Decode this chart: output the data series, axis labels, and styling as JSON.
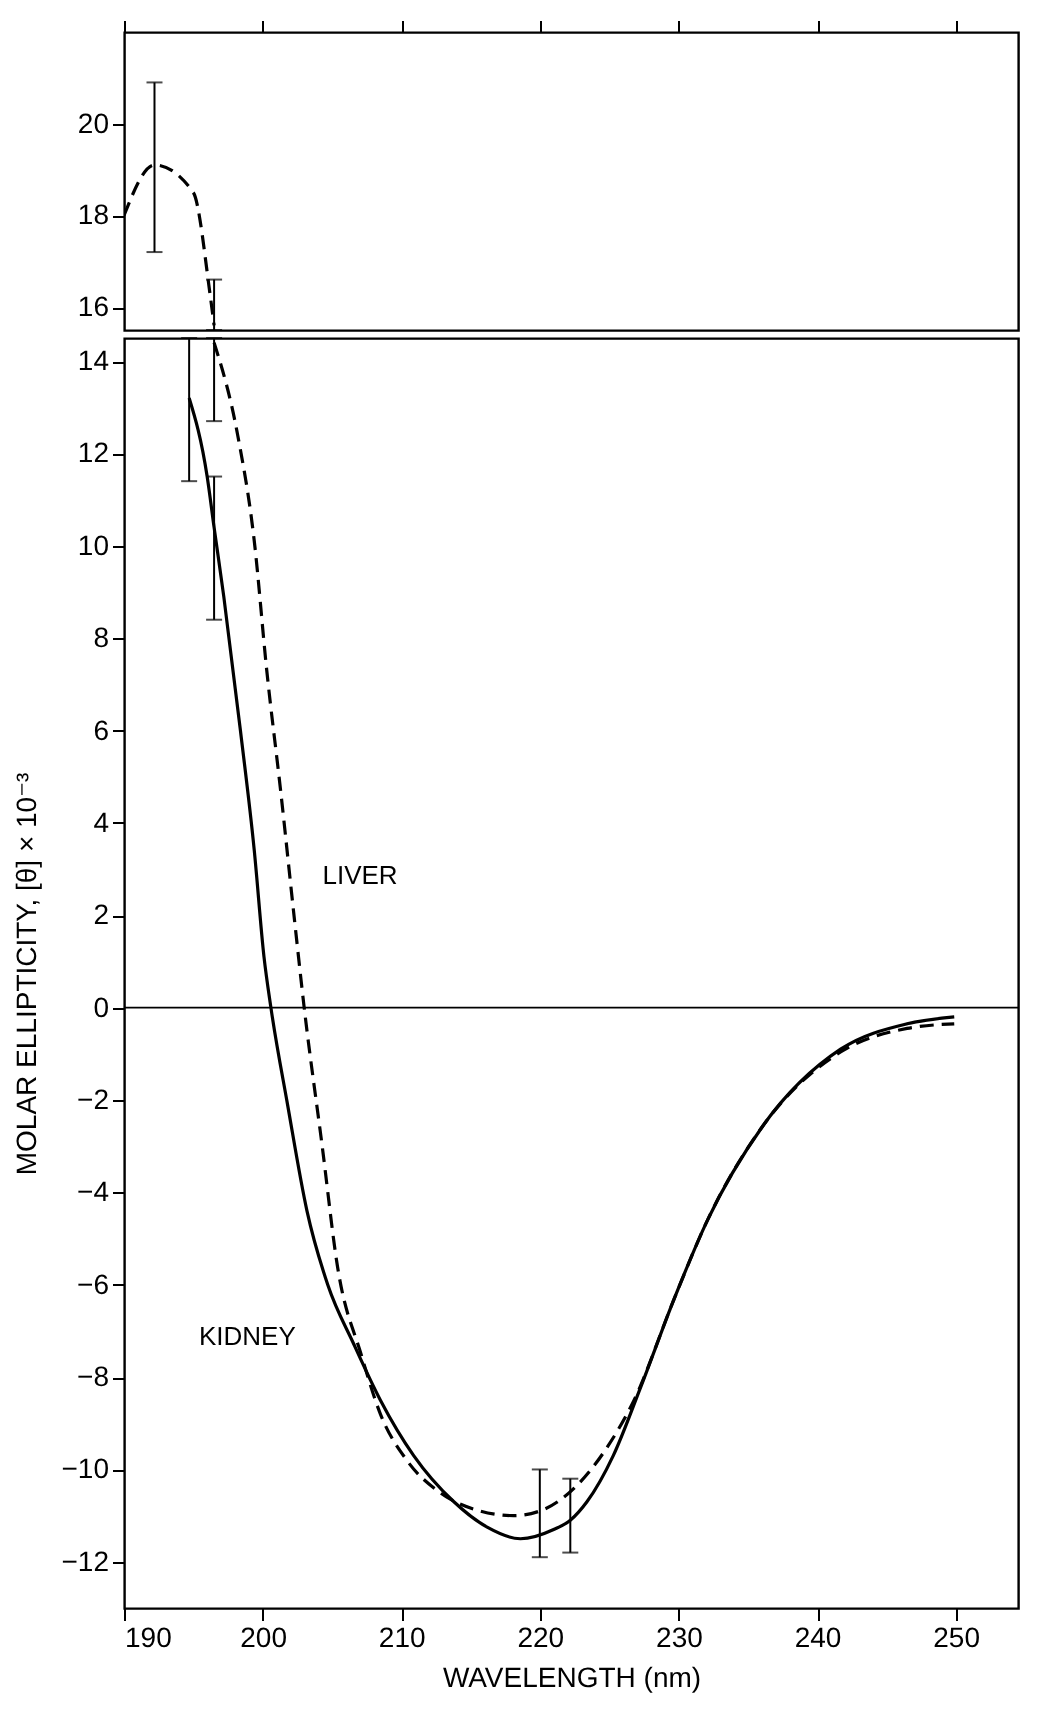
{
  "chart_data": [
    {
      "type": "line",
      "xlim": [
        190,
        254.5
      ],
      "xticks": [
        190,
        200,
        210,
        220,
        230,
        240,
        250
      ],
      "ylim": [
        15.5,
        22
      ],
      "yticks": [
        16,
        18,
        20
      ],
      "tick_labels": "y",
      "series": [
        {
          "color": "#000000",
          "line_style": "dashed",
          "x": [
            190,
            192.2,
            195,
            196.2,
            196.5
          ],
          "values": [
            18,
            19.1,
            18.5,
            16.3,
            15.6
          ],
          "errors": [
            null,
            [
              17.2,
              20.9
            ],
            null,
            null,
            [
              15.5,
              16.6
            ]
          ]
        }
      ]
    },
    {
      "type": "line",
      "xlim": [
        190,
        254.5
      ],
      "xticks": [
        190,
        200,
        210,
        220,
        230,
        240,
        250
      ],
      "ylim": [
        -13,
        14.5
      ],
      "yticks": [
        -12,
        -10,
        -8,
        -6,
        -4,
        -2,
        0,
        2,
        4,
        6,
        8,
        10,
        12,
        14
      ],
      "xlabel": "WAVELENGTH (nm)",
      "ylabel": "MOLAR ELLIPTICITY, [θ] × 10⁻³",
      "ref_lines": [
        {
          "axis": "y",
          "value": 0,
          "color": "#000000"
        }
      ],
      "annotations": [
        {
          "text": "LIVER",
          "x": 202.3,
          "y": 1.9
        },
        {
          "text": "KIDNEY",
          "x": 204.7,
          "y": -6.0
        }
      ],
      "series": [
        {
          "color": "#000000",
          "line_style": "dashed",
          "x": [
            196.5,
            198.2,
            199.4,
            200.3,
            201.3,
            202.3,
            203.0,
            204.3,
            205.4,
            207.1,
            208.5,
            210.4,
            212.8,
            215.7,
            218.1,
            220.0,
            222.5,
            224.9,
            226.8,
            229.7,
            232.1,
            236.0,
            241.7,
            246.5,
            249.9
          ],
          "values": [
            14.4,
            12.4,
            10.1,
            7.3,
            4.7,
            1.9,
            0,
            -3.0,
            -5.6,
            -7.5,
            -8.8,
            -9.8,
            -10.5,
            -10.9,
            -11.0,
            -10.9,
            -10.4,
            -9.5,
            -8.5,
            -6.3,
            -4.6,
            -2.6,
            -0.96,
            -0.45,
            -0.35
          ],
          "errors": [
            [
              12.7,
              14.5
            ],
            null,
            null,
            null,
            null,
            null,
            null,
            null,
            null,
            null,
            null,
            null,
            null,
            null,
            null,
            [
              -11.9,
              -10.0
            ],
            null,
            null,
            null,
            null,
            null,
            null,
            null,
            null,
            null
          ]
        },
        {
          "color": "#000000",
          "line_style": "solid",
          "x": [
            194.7,
            196.0,
            196.5,
            197.2,
            198.4,
            199.4,
            200.1,
            200.6,
            201.8,
            203.2,
            204.7,
            206.6,
            208.5,
            210.9,
            213.8,
            216.2,
            218.6,
            221.0,
            222.2,
            223.4,
            225.3,
            227.3,
            229.7,
            232.1,
            236.0,
            241.7,
            246.5,
            249.9
          ],
          "values": [
            13.2,
            11.5,
            10.4,
            8.9,
            6.0,
            3.4,
            1.1,
            0,
            -2.1,
            -4.4,
            -6.0,
            -7.3,
            -8.5,
            -9.7,
            -10.7,
            -11.25,
            -11.5,
            -11.3,
            -11.1,
            -10.7,
            -9.7,
            -8.2,
            -6.3,
            -4.6,
            -2.6,
            -0.9,
            -0.35,
            -0.2
          ],
          "errors": [
            [
              11.4,
              14.5
            ],
            null,
            [
              8.4,
              11.5
            ],
            null,
            null,
            null,
            null,
            null,
            null,
            null,
            null,
            null,
            null,
            null,
            null,
            null,
            null,
            null,
            [
              -11.8,
              -10.2
            ],
            null,
            null,
            null,
            null,
            null,
            null,
            null,
            null,
            null
          ]
        }
      ]
    }
  ]
}
